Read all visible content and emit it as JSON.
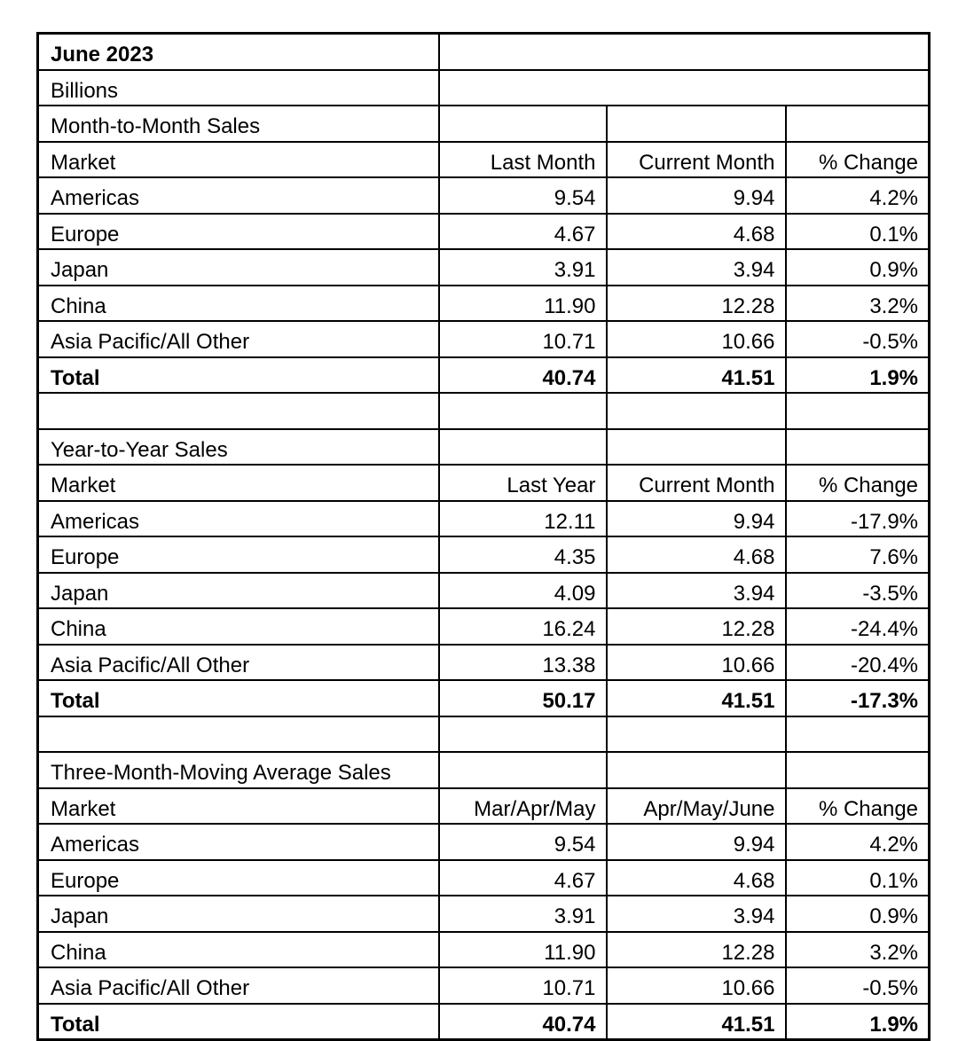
{
  "meta": {
    "title": "June 2023",
    "unit_label": "Billions"
  },
  "colors": {
    "background": "#ffffff",
    "border": "#000000",
    "text": "#000000"
  },
  "chart_data": [
    {
      "type": "table",
      "title": "Month-to-Month Sales",
      "columns": [
        "Market",
        "Last Month",
        "Current Month",
        "% Change"
      ],
      "rows": [
        [
          "Americas",
          "9.54",
          "9.94",
          "4.2%"
        ],
        [
          "Europe",
          "4.67",
          "4.68",
          "0.1%"
        ],
        [
          "Japan",
          "3.91",
          "3.94",
          "0.9%"
        ],
        [
          "China",
          "11.90",
          "12.28",
          "3.2%"
        ],
        [
          "Asia Pacific/All Other",
          "10.71",
          "10.66",
          "-0.5%"
        ]
      ],
      "total": [
        "Total",
        "40.74",
        "41.51",
        "1.9%"
      ]
    },
    {
      "type": "table",
      "title": "Year-to-Year Sales",
      "columns": [
        "Market",
        "Last Year",
        "Current Month",
        "% Change"
      ],
      "rows": [
        [
          "Americas",
          "12.11",
          "9.94",
          "-17.9%"
        ],
        [
          "Europe",
          "4.35",
          "4.68",
          "7.6%"
        ],
        [
          "Japan",
          "4.09",
          "3.94",
          "-3.5%"
        ],
        [
          "China",
          "16.24",
          "12.28",
          "-24.4%"
        ],
        [
          "Asia Pacific/All Other",
          "13.38",
          "10.66",
          "-20.4%"
        ]
      ],
      "total": [
        "Total",
        "50.17",
        "41.51",
        "-17.3%"
      ]
    },
    {
      "type": "table",
      "title": "Three-Month-Moving Average Sales",
      "columns": [
        "Market",
        "Mar/Apr/May",
        "Apr/May/June",
        "% Change"
      ],
      "rows": [
        [
          "Americas",
          "9.54",
          "9.94",
          "4.2%"
        ],
        [
          "Europe",
          "4.67",
          "4.68",
          "0.1%"
        ],
        [
          "Japan",
          "3.91",
          "3.94",
          "0.9%"
        ],
        [
          "China",
          "11.90",
          "12.28",
          "3.2%"
        ],
        [
          "Asia Pacific/All Other",
          "10.71",
          "10.66",
          "-0.5%"
        ]
      ],
      "total": [
        "Total",
        "40.74",
        "41.51",
        "1.9%"
      ]
    }
  ]
}
